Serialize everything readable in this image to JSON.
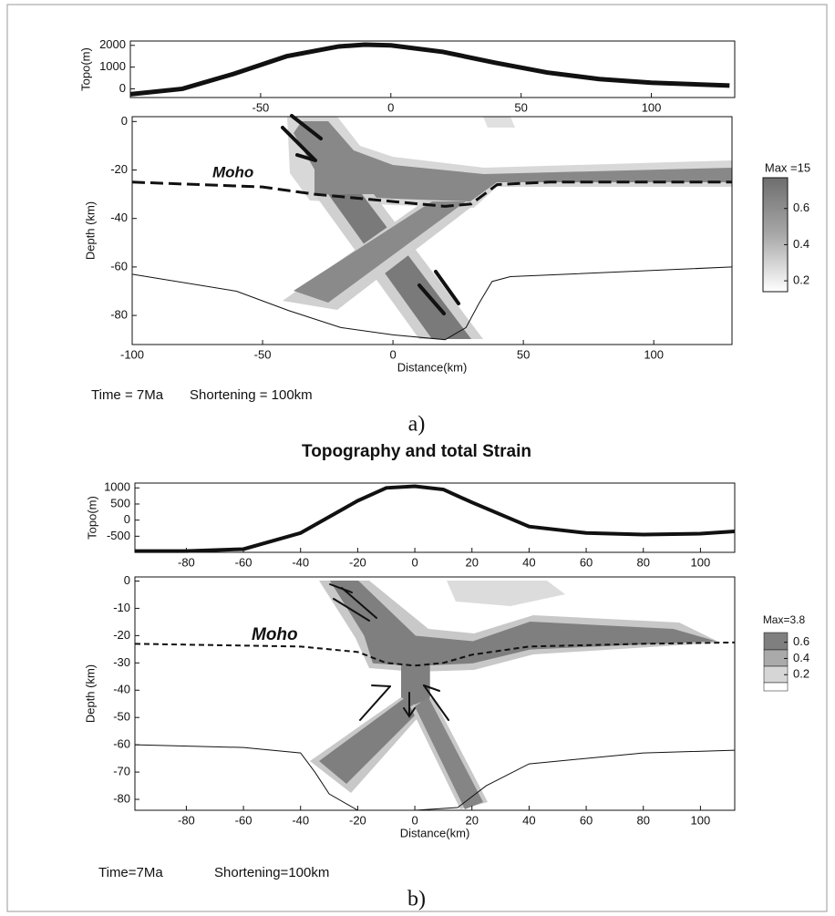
{
  "title": "Topography and total Strain",
  "panels": [
    {
      "label": "a)",
      "time": "Time = 7Ma",
      "shortening": "Shortening = 100km",
      "topo": {
        "type": "line",
        "ylabel": "Topo(m)",
        "x": [
          -100,
          -80,
          -60,
          -40,
          -20,
          -10,
          0,
          20,
          40,
          60,
          80,
          100,
          130
        ],
        "values": [
          -250,
          0,
          700,
          1500,
          1950,
          2030,
          2000,
          1700,
          1200,
          750,
          450,
          280,
          150
        ],
        "xlim": [
          -100,
          132
        ],
        "ylim": [
          -400,
          2200
        ],
        "xticks": [
          -50,
          0,
          50,
          100
        ],
        "yticks": [
          0,
          1000,
          2000
        ]
      },
      "section": {
        "type": "section",
        "xlabel": "Distance(km)",
        "ylabel": "Depth (km)",
        "xlim": [
          -100,
          130
        ],
        "ylim": [
          -92,
          2
        ],
        "xticks": [
          -100,
          -50,
          0,
          50,
          100
        ],
        "yticks": [
          -80,
          -60,
          -40,
          -20,
          0
        ],
        "moho_label": "Moho",
        "moho": {
          "x": [
            -100,
            -50,
            -30,
            0,
            20,
            30,
            40,
            60,
            130
          ],
          "values": [
            -25,
            -27,
            -30,
            -33,
            -35,
            -34,
            -26,
            -25,
            -25
          ]
        },
        "base": {
          "x": [
            -100,
            -60,
            -40,
            -20,
            0,
            20,
            28,
            33,
            38,
            45,
            130
          ],
          "values": [
            -63,
            -70,
            -78,
            -85,
            -88,
            -90,
            -85,
            -75,
            -66,
            -64,
            -60
          ]
        }
      },
      "colorbar": {
        "title": "Max =15",
        "lim": [
          0.14,
          0.77
        ],
        "ticks": [
          0.2,
          0.4,
          0.6
        ]
      }
    },
    {
      "label": "b)",
      "time": "Time=7Ma",
      "shortening": "Shortening=100km",
      "topo": {
        "type": "line",
        "ylabel": "Topo(m)",
        "x": [
          -98,
          -80,
          -60,
          -40,
          -20,
          -10,
          0,
          10,
          20,
          40,
          60,
          80,
          100,
          112
        ],
        "values": [
          -960,
          -960,
          -900,
          -400,
          600,
          1000,
          1050,
          950,
          550,
          -200,
          -400,
          -450,
          -420,
          -350
        ],
        "xlim": [
          -98,
          112
        ],
        "ylim": [
          -1000,
          1150
        ],
        "xticks": [
          -80,
          -60,
          -40,
          -20,
          0,
          20,
          40,
          60,
          80,
          100
        ],
        "yticks": [
          -500,
          0,
          500,
          1000
        ]
      },
      "section": {
        "type": "section",
        "xlabel": "Distance(km)",
        "ylabel": "Depth (km)",
        "xlim": [
          -98,
          112
        ],
        "ylim": [
          -84,
          1.5
        ],
        "xticks": [
          -80,
          -60,
          -40,
          -20,
          0,
          20,
          40,
          60,
          80,
          100
        ],
        "yticks": [
          -80,
          -70,
          -60,
          -50,
          -40,
          -30,
          -20,
          -10,
          0
        ],
        "moho_label": "Moho",
        "moho": {
          "x": [
            -98,
            -40,
            -20,
            -10,
            0,
            10,
            20,
            40,
            80,
            112
          ],
          "values": [
            -23,
            -24,
            -26,
            -30,
            -31,
            -30,
            -27,
            -24,
            -23,
            -22.5
          ]
        },
        "base": {
          "x": [
            -98,
            -60,
            -40,
            -35,
            -30,
            -20,
            0,
            15,
            25,
            40,
            80,
            112
          ],
          "values": [
            -60,
            -61,
            -63,
            -70,
            -78,
            -84,
            -84,
            -83,
            -75,
            -67,
            -63,
            -62
          ]
        }
      },
      "colorbar": {
        "title": "Max=3.8",
        "lim": [
          0,
          0.72
        ],
        "ticks": [
          0.2,
          0.4,
          0.6
        ]
      }
    }
  ]
}
